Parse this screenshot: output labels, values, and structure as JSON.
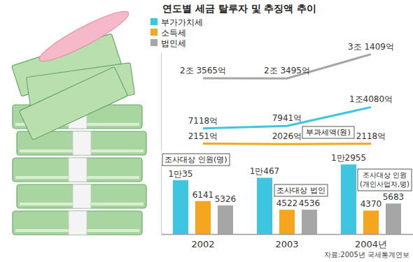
{
  "chart_data": {
    "type": "bar",
    "title": "연도별 세금 탈루자 및 추징액 추이",
    "categories": [
      "2002",
      "2003",
      "2004년"
    ],
    "series": [
      {
        "name": "부가가치세",
        "color": "#3ec6e0",
        "values": [
          10035,
          10467,
          12955
        ],
        "value_labels": [
          "1만35",
          "1만467",
          "1만2955"
        ]
      },
      {
        "name": "소득세",
        "color": "#f5a51e",
        "values": [
          6141,
          4522,
          4370
        ]
      },
      {
        "name": "법인세",
        "color": "#a6a6a6",
        "values": [
          5326,
          4536,
          5683
        ]
      },
      {
        "type": "line",
        "axis": "y2",
        "color": "#3ec6e0",
        "values": [
          7118,
          7941,
          14080
        ],
        "value_labels": [
          "7118억",
          "7941억",
          "1조4080억"
        ]
      },
      {
        "type": "line",
        "axis": "y2",
        "color": "#f5a51e",
        "values": [
          2151,
          2026,
          2118
        ],
        "value_labels": [
          "2151억",
          "2026억",
          "2118억"
        ]
      },
      {
        "type": "line",
        "axis": "y2",
        "color": "#a6a6a6",
        "values": [
          23565,
          23495,
          31409
        ],
        "value_labels": [
          "2조 3565억",
          "2조 3495억",
          "3조 1409억"
        ]
      }
    ],
    "annotations": [
      "부과세액(원)",
      "조사대상 인원(명)",
      "조사대상 법인",
      "조사대상 인원(개인사업자,명)"
    ],
    "source": "자료:2005년 국세통계연보",
    "ylim": [
      0,
      13000
    ],
    "yticks": [],
    "y2lim": [
      0,
      32000
    ],
    "y2ticks": [],
    "data_labels": true,
    "tick_labels": "x",
    "legend": "top-left"
  }
}
